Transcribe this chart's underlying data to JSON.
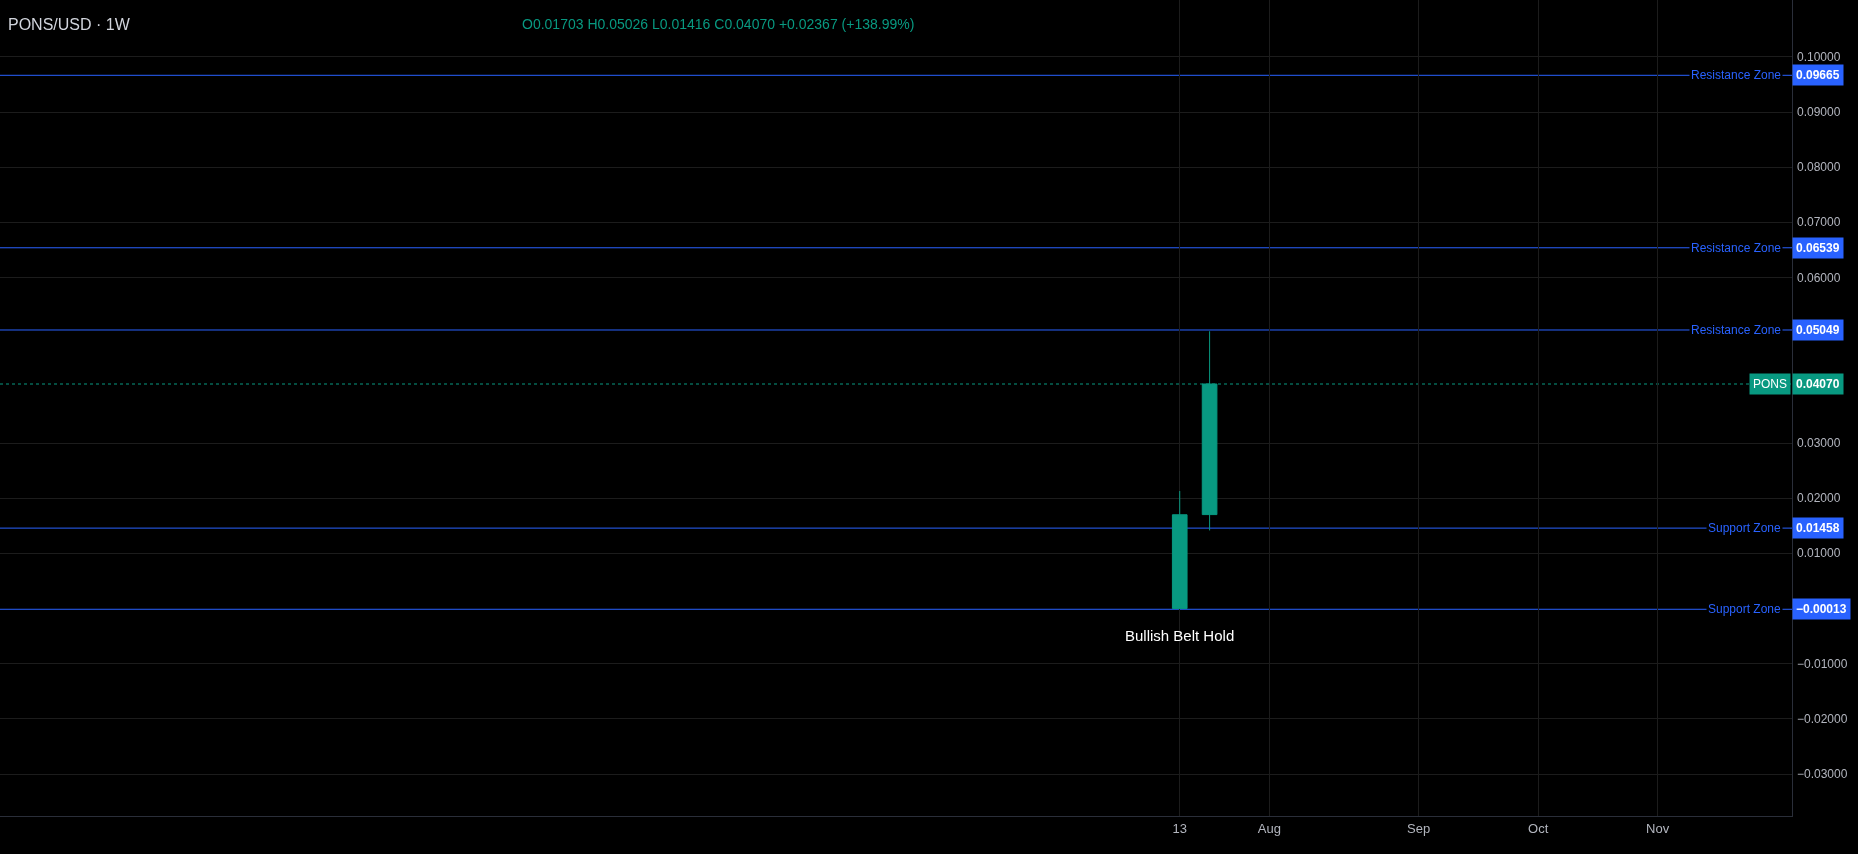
{
  "chart_data": {
    "type": "candlestick",
    "title": "PONS/USD · 1W",
    "subtitle": "O0.01703 H0.05026 L0.01416 C0.04070 +0.02367 (+138.99%)",
    "categories": [
      null,
      null,
      null,
      null,
      null,
      null,
      null,
      null,
      null,
      null,
      null,
      null,
      null,
      null,
      null,
      null,
      null,
      null,
      null,
      null,
      null,
      null,
      null,
      null,
      null,
      null,
      null,
      null,
      null,
      null,
      null,
      null,
      null,
      null,
      null,
      null,
      null,
      null,
      null,
      "13",
      null,
      null,
      "Aug",
      null,
      null,
      null,
      null,
      "Sep",
      null,
      null,
      null,
      "Oct",
      null,
      null,
      null,
      "Nov",
      null,
      null,
      null,
      null
    ],
    "ohlc": [
      null,
      null,
      null,
      null,
      null,
      null,
      null,
      null,
      null,
      null,
      null,
      null,
      null,
      null,
      null,
      null,
      null,
      null,
      null,
      null,
      null,
      null,
      null,
      null,
      null,
      null,
      null,
      null,
      null,
      null,
      null,
      null,
      null,
      null,
      null,
      null,
      null,
      null,
      null,
      [
        0.0,
        0.0213,
        0.0,
        0.017
      ],
      [
        0.01703,
        0.05026,
        0.01416,
        0.0407
      ],
      null,
      null,
      null,
      null,
      null,
      null,
      null,
      null,
      null,
      null,
      null,
      null,
      null,
      null,
      null,
      null,
      null,
      null,
      null
    ],
    "color": "#089981",
    "ylim": [
      -0.0376,
      0.1103
    ],
    "yticks": [
      {
        "value": 0.1,
        "label": "0.10000"
      },
      {
        "value": 0.09,
        "label": "0.09000"
      },
      {
        "value": 0.08,
        "label": "0.08000"
      },
      {
        "value": 0.07,
        "label": "0.07000"
      },
      {
        "value": 0.06,
        "label": "0.06000"
      },
      {
        "value": 0.03,
        "label": "0.03000"
      },
      {
        "value": 0.02,
        "label": "0.02000"
      },
      {
        "value": 0.01,
        "label": "0.01000"
      },
      {
        "value": -0.01,
        "label": "−0.01000"
      },
      {
        "value": -0.02,
        "label": "−0.02000"
      },
      {
        "value": -0.03,
        "label": "−0.03000"
      }
    ],
    "grid": true,
    "ref_lines": [
      {
        "axis": "y",
        "value": 0.09665,
        "label": "Resistance Zone",
        "color": "#2962ff",
        "line_style": "solid"
      },
      {
        "axis": "y",
        "value": 0.06539,
        "label": "Resistance Zone",
        "color": "#2962ff",
        "line_style": "solid"
      },
      {
        "axis": "y",
        "value": 0.05049,
        "label": "Resistance Zone",
        "color": "#2962ff",
        "line_style": "solid"
      },
      {
        "axis": "y",
        "value": 0.0407,
        "label": "PONS",
        "color": "#089981",
        "line_style": "dotted"
      },
      {
        "axis": "y",
        "value": 0.01458,
        "label": "Support Zone",
        "color": "#2962ff",
        "line_style": "solid"
      },
      {
        "axis": "y",
        "value": -0.00013,
        "label": "Support Zone",
        "color": "#2962ff",
        "line_style": "solid"
      }
    ],
    "annotations": [
      {
        "text": "Bullish Belt Hold",
        "x": "13",
        "y": 0.0
      },
      "0.09665",
      "0.06539",
      "0.05049",
      "0.04070",
      "0.01458",
      "−0.00013"
    ]
  }
}
